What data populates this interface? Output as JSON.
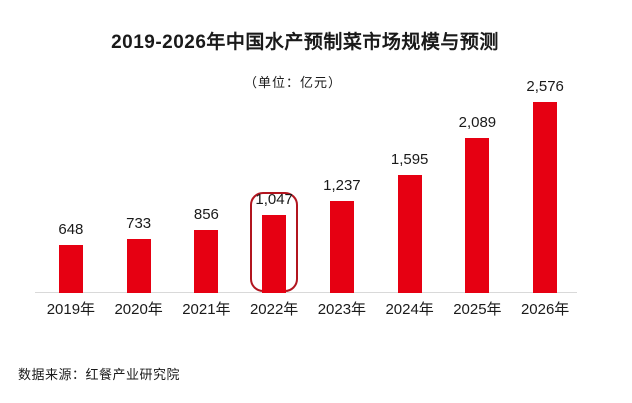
{
  "chart_data": {
    "type": "bar",
    "title": "2019-2026年中国水产预制菜市场规模与预测",
    "subtitle": "（单位：亿元）",
    "categories": [
      "2019年",
      "2020年",
      "2021年",
      "2022年",
      "2023年",
      "2024年",
      "2025年",
      "2026年"
    ],
    "values": [
      648,
      733,
      856,
      1047,
      1237,
      1595,
      2089,
      2576
    ],
    "value_labels": [
      "648",
      "733",
      "856",
      "1,047",
      "1,237",
      "1,595",
      "2,089",
      "2,576"
    ],
    "highlight_index": 3,
    "xlabel": "",
    "ylabel": "",
    "ylim": [
      0,
      2800
    ],
    "grid": false,
    "legend": false,
    "colors": {
      "bar": "#e60012",
      "highlight_border": "#b2151f",
      "axis_line": "#d9d9d9",
      "text": "#1a1a1a",
      "background": "#ffffff"
    }
  },
  "source": "数据来源：红餐产业研究院"
}
